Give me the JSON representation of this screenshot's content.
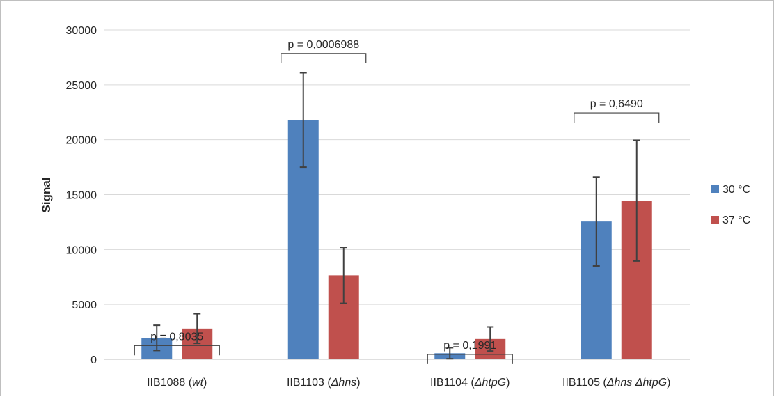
{
  "colors": {
    "s30": "#4f81bd",
    "s37": "#c0504d",
    "grid": "#d9d9d9",
    "axis": "#bfbfbf",
    "error": "#404040",
    "bracket": "#404040"
  },
  "chart_data": {
    "type": "bar",
    "ylabel": "Signal",
    "ylim": [
      0,
      30000
    ],
    "yticks": [
      0,
      5000,
      10000,
      15000,
      20000,
      25000,
      30000
    ],
    "ytick_labels": [
      "0",
      "5000",
      "10000",
      "15000",
      "20000",
      "25000",
      "30000"
    ],
    "grid": true,
    "legend_position": "right",
    "categories": [
      {
        "base": "IIB1088 (",
        "italic": "wt",
        "end": ")"
      },
      {
        "base": "IIB1103 (",
        "italic": "Δhns",
        "end": ")"
      },
      {
        "base": "IIB1104 (",
        "italic": "ΔhtpG",
        "end": ")"
      },
      {
        "base": "IIB1105 (",
        "italic": "Δhns ΔhtpG",
        "end": ")"
      }
    ],
    "series": [
      {
        "name": "30 °C",
        "color": "#4f81bd",
        "values": [
          1950,
          21800,
          550,
          12550
        ],
        "error": [
          1150,
          4300,
          500,
          4050
        ]
      },
      {
        "name": "37 °C",
        "color": "#c0504d",
        "values": [
          2800,
          7650,
          1850,
          14450
        ],
        "error": [
          1350,
          2550,
          1100,
          5500
        ]
      }
    ],
    "annotations": [
      {
        "text": "p = 0,8035",
        "category": 0,
        "bracket_y": 1250
      },
      {
        "text": "p = 0,0006988",
        "category": 1,
        "bracket_y": 27850
      },
      {
        "text": "p = 0,1991",
        "category": 2,
        "bracket_y": 450
      },
      {
        "text": "p = 0,6490",
        "category": 3,
        "bracket_y": 22450
      }
    ]
  }
}
